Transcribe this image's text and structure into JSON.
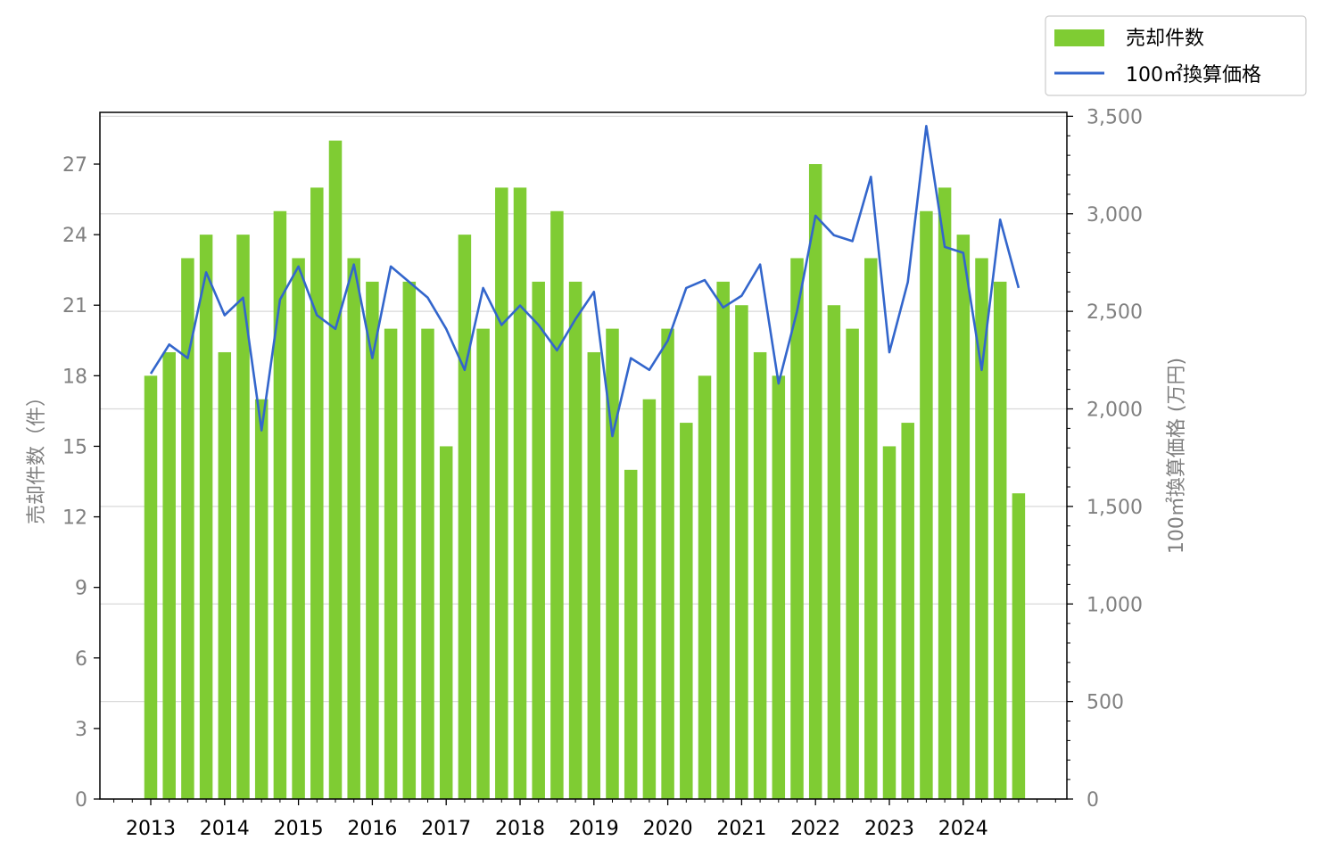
{
  "chart_data": {
    "type": "bar",
    "colors": {
      "bar": "#7fcc33",
      "line": "#3366cc",
      "grid": "#d9d9d9",
      "tick_text_y": "#808080",
      "tick_text_x": "#000000"
    },
    "legend": {
      "placement": "top-right",
      "entries": [
        "売却件数",
        "100㎡換算価格"
      ]
    },
    "xlabel": "",
    "ylabel_left": "売却件数（件）",
    "ylabel_right": "100㎡換算価格 (万円)",
    "ylim_left": [
      0,
      29.2
    ],
    "ylim_right": [
      0,
      3520
    ],
    "left_ticks": [
      "0",
      "3",
      "6",
      "9",
      "12",
      "15",
      "18",
      "21",
      "24",
      "27"
    ],
    "right_ticks": [
      "0",
      "500",
      "1,000",
      "1,500",
      "2,000",
      "2,500",
      "3,000",
      "3,500"
    ],
    "x_year_labels": [
      "2013",
      "2014",
      "2015",
      "2016",
      "2017",
      "2018",
      "2019",
      "2020",
      "2021",
      "2022",
      "2023",
      "2024"
    ],
    "grid": true,
    "series": [
      {
        "name": "売却件数",
        "type": "bar",
        "axis": "left",
        "values": [
          18,
          19,
          23,
          24,
          19,
          24,
          17,
          25,
          23,
          26,
          28,
          23,
          22,
          20,
          22,
          20,
          15,
          24,
          20,
          26,
          26,
          22,
          25,
          22,
          19,
          20,
          14,
          17,
          20,
          16,
          18,
          22,
          21,
          19,
          18,
          23,
          27,
          21,
          20,
          23,
          15,
          16,
          25,
          26,
          24,
          23,
          22,
          13
        ]
      },
      {
        "name": "100㎡換算価格",
        "type": "line",
        "axis": "right",
        "values": [
          2180,
          2330,
          2260,
          2700,
          2480,
          2570,
          1890,
          2560,
          2730,
          2480,
          2410,
          2740,
          2260,
          2730,
          2650,
          2570,
          2410,
          2200,
          2620,
          2430,
          2530,
          2430,
          2300,
          2460,
          2600,
          1860,
          2260,
          2200,
          2350,
          2620,
          2660,
          2520,
          2580,
          2740,
          2130,
          2500,
          2990,
          2890,
          2860,
          3190,
          2290,
          2650,
          3450,
          2830,
          2800,
          2200,
          2970,
          2620
        ]
      }
    ]
  }
}
